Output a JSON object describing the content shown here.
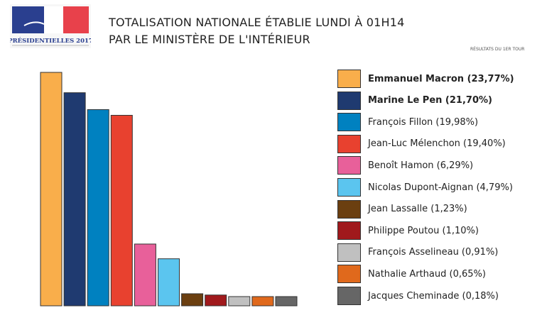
{
  "logo": {
    "text": "PRÉSIDENTIELLES 2017",
    "colors": [
      "#2a3f8f",
      "#ffffff",
      "#e8414b"
    ]
  },
  "title": {
    "line1": "TOTALISATION NATIONALE ÉTABLIE LUNDI À 01H14",
    "line2": "PAR LE MINISTÈRE DE L'INTÉRIEUR"
  },
  "subtitle": "RÉSULTATS DU 1ER TOUR",
  "chart_data": {
    "type": "bar",
    "legend_position": "right",
    "grid": false,
    "categories": [
      "Emmanuel Macron",
      "Marine Le Pen",
      "François Fillon",
      "Jean-Luc Mélenchon",
      "Benoît Hamon",
      "Nicolas Dupont-Aignan",
      "Jean Lassalle",
      "Philippe Poutou",
      "François Asselineau",
      "Nathalie Arthaud",
      "Jacques Cheminade"
    ],
    "values": [
      23.77,
      21.7,
      19.98,
      19.4,
      6.29,
      4.79,
      1.23,
      1.1,
      0.91,
      0.65,
      0.18
    ],
    "colors": [
      "#f9ae4b",
      "#1f3a70",
      "#0081c0",
      "#e8412f",
      "#e8609a",
      "#5bc5ef",
      "#6b3f10",
      "#a0191c",
      "#c0c0c0",
      "#e0691c",
      "#666666"
    ],
    "legend": [
      "Emmanuel Macron (23,77%)",
      "Marine Le Pen (21,70%)",
      "François Fillon (19,98%)",
      "Jean-Luc Mélenchon (19,40%)",
      "Benoît Hamon (6,29%)",
      "Nicolas Dupont-Aignan (4,79%)",
      "Jean Lassalle (1,23%)",
      "Philippe Poutou (1,10%)",
      "François Asselineau (0,91%)",
      "Nathalie Arthaud (0,65%)",
      "Jacques Cheminade (0,18%)"
    ],
    "legend_bold": [
      true,
      true,
      false,
      false,
      false,
      false,
      false,
      false,
      false,
      false,
      false
    ]
  }
}
